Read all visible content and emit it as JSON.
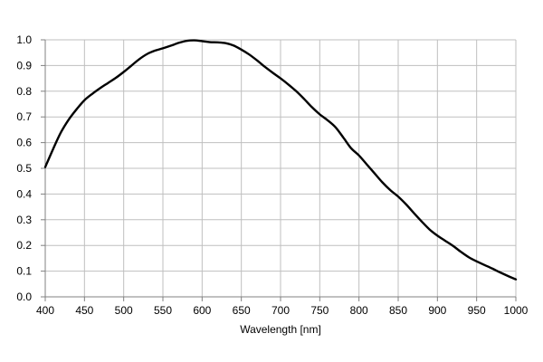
{
  "chart_data": {
    "type": "line",
    "title": "",
    "xlabel": "Wavelength [nm]",
    "ylabel": "",
    "xlim": [
      400,
      1000
    ],
    "ylim": [
      0.0,
      1.0
    ],
    "grid": true,
    "x_ticks": [
      400,
      450,
      500,
      550,
      600,
      650,
      700,
      750,
      800,
      850,
      900,
      950,
      1000
    ],
    "y_ticks": [
      0.0,
      0.1,
      0.2,
      0.3,
      0.4,
      0.5,
      0.6,
      0.7,
      0.8,
      0.9,
      1.0
    ],
    "x_tick_labels": [
      "400",
      "450",
      "500",
      "550",
      "600",
      "650",
      "700",
      "750",
      "800",
      "850",
      "900",
      "950",
      "1000"
    ],
    "y_tick_labels": [
      "0.0",
      "0.1",
      "0.2",
      "0.3",
      "0.4",
      "0.5",
      "0.6",
      "0.7",
      "0.8",
      "0.9",
      "1.0"
    ],
    "line_color": "#000000",
    "grid_color": "#bfbfbf",
    "series": [
      {
        "x": [
          400,
          410,
          420,
          430,
          440,
          450,
          460,
          470,
          480,
          490,
          500,
          510,
          520,
          530,
          540,
          550,
          560,
          570,
          580,
          590,
          600,
          610,
          620,
          630,
          640,
          650,
          660,
          670,
          680,
          690,
          700,
          710,
          720,
          730,
          740,
          750,
          760,
          770,
          780,
          790,
          800,
          810,
          820,
          830,
          840,
          850,
          860,
          870,
          880,
          890,
          900,
          910,
          920,
          930,
          940,
          950,
          960,
          970,
          980,
          990,
          1000
        ],
        "y": [
          0.505,
          0.575,
          0.64,
          0.69,
          0.73,
          0.765,
          0.79,
          0.812,
          0.832,
          0.852,
          0.875,
          0.9,
          0.925,
          0.945,
          0.958,
          0.967,
          0.977,
          0.988,
          0.996,
          0.998,
          0.995,
          0.991,
          0.99,
          0.987,
          0.978,
          0.962,
          0.943,
          0.92,
          0.895,
          0.872,
          0.85,
          0.826,
          0.8,
          0.77,
          0.738,
          0.71,
          0.687,
          0.66,
          0.62,
          0.578,
          0.55,
          0.515,
          0.48,
          0.445,
          0.415,
          0.39,
          0.36,
          0.326,
          0.293,
          0.262,
          0.238,
          0.218,
          0.198,
          0.175,
          0.154,
          0.138,
          0.124,
          0.11,
          0.095,
          0.081,
          0.068
        ]
      }
    ]
  }
}
